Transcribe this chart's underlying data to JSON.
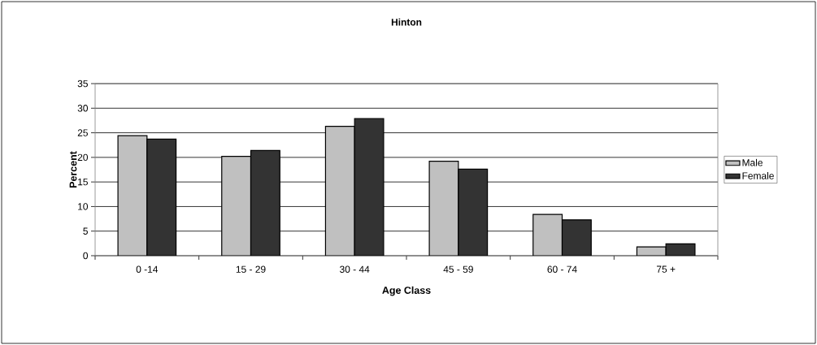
{
  "chart_data": {
    "type": "bar",
    "title": "Hinton",
    "xlabel": "Age Class",
    "ylabel": "Percent",
    "categories": [
      "0 -14",
      "15 - 29",
      "30 - 44",
      "45 - 59",
      "60 - 74",
      "75  +"
    ],
    "series": [
      {
        "name": "Male",
        "color": "#c0c0c0",
        "values": [
          24.4,
          20.2,
          26.3,
          19.2,
          8.4,
          1.8
        ]
      },
      {
        "name": "Female",
        "color": "#333333",
        "values": [
          23.7,
          21.4,
          27.9,
          17.6,
          7.3,
          2.4
        ]
      }
    ],
    "ylim": [
      0,
      35
    ],
    "yticks": [
      0,
      5,
      10,
      15,
      20,
      25,
      30,
      35
    ],
    "grid": "y",
    "legend": "right"
  }
}
